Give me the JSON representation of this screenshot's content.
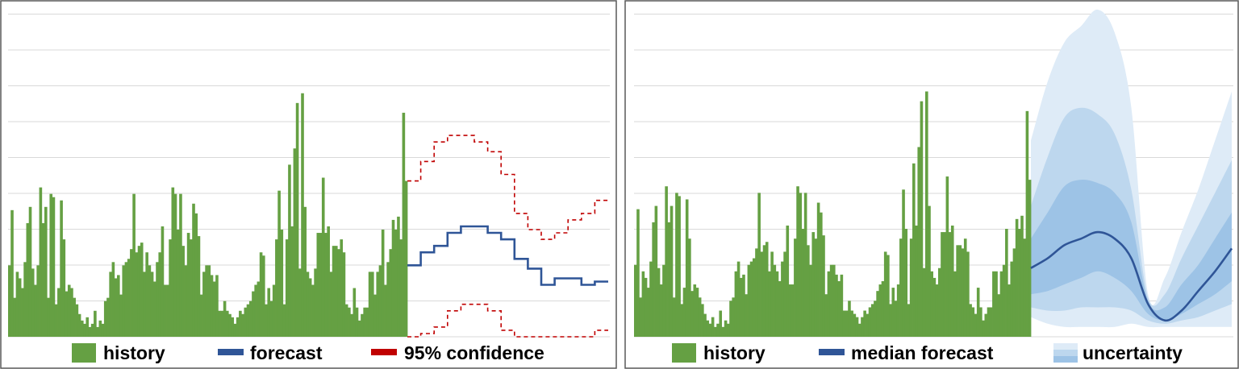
{
  "colors": {
    "history": "#65a043",
    "forecast": "#2f5597",
    "confidence": "#c00000",
    "band_outer": "#deebf7",
    "band_mid": "#bdd7ee",
    "band_inner": "#9dc3e6",
    "grid": "#d9d9d9",
    "frame": "#595959"
  },
  "chart_data": [
    {
      "type": "bar",
      "panel": "left",
      "grid": true,
      "ylim": [
        0,
        100
      ],
      "history": [
        22,
        39,
        12,
        20,
        18,
        15,
        23,
        35,
        40,
        21,
        16,
        22,
        46,
        35,
        40,
        12,
        44,
        43,
        10,
        15,
        42,
        30,
        14,
        16,
        15,
        12,
        10,
        7,
        5,
        4,
        6,
        3,
        4,
        8,
        3,
        5,
        4,
        11,
        12,
        20,
        23,
        18,
        19,
        13,
        22,
        23,
        24,
        27,
        44,
        26,
        28,
        29,
        20,
        26,
        22,
        20,
        17,
        23,
        26,
        34,
        16,
        16,
        30,
        46,
        44,
        33,
        44,
        28,
        22,
        32,
        30,
        41,
        38,
        31,
        13,
        20,
        22,
        22,
        19,
        17,
        19,
        8,
        8,
        11,
        8,
        7,
        6,
        4,
        6,
        8,
        7,
        9,
        10,
        11,
        14,
        16,
        17,
        26,
        25,
        10,
        15,
        11,
        16,
        30,
        45,
        33,
        10,
        30,
        53,
        34,
        58,
        72,
        21,
        75,
        40,
        20,
        18,
        16,
        21,
        32,
        32,
        49,
        32,
        34,
        20,
        28,
        28,
        27,
        30,
        26,
        10,
        9,
        7,
        15,
        9,
        5,
        7,
        9,
        9,
        20,
        20,
        13,
        20,
        22,
        33,
        16,
        23,
        27,
        36,
        33,
        37,
        30,
        69,
        48
      ],
      "forecast_steps": [
        22,
        26,
        28,
        32,
        34,
        34,
        32,
        30,
        24,
        21,
        16,
        18,
        18,
        16,
        17
      ],
      "upper_steps": [
        48,
        54,
        60,
        62,
        62,
        60,
        57,
        50,
        38,
        33,
        30,
        32,
        36,
        38,
        42
      ],
      "lower_steps": [
        0,
        1,
        3,
        8,
        10,
        10,
        8,
        2,
        0,
        0,
        0,
        0,
        0,
        0,
        2
      ],
      "legend": [
        {
          "key": "history",
          "label": "history"
        },
        {
          "key": "forecast",
          "label": "forecast"
        },
        {
          "key": "confidence",
          "label": "95% confidence"
        }
      ]
    },
    {
      "type": "area",
      "panel": "right",
      "grid": true,
      "ylim": [
        0,
        100
      ],
      "history": [
        22,
        39,
        12,
        20,
        18,
        15,
        23,
        35,
        40,
        21,
        16,
        22,
        46,
        35,
        40,
        12,
        44,
        43,
        10,
        15,
        42,
        30,
        14,
        16,
        15,
        12,
        10,
        7,
        5,
        4,
        6,
        3,
        4,
        8,
        3,
        5,
        4,
        11,
        12,
        20,
        23,
        18,
        19,
        13,
        22,
        23,
        24,
        27,
        44,
        26,
        28,
        29,
        20,
        26,
        22,
        20,
        17,
        23,
        26,
        34,
        16,
        16,
        30,
        46,
        44,
        33,
        44,
        28,
        22,
        32,
        30,
        41,
        38,
        31,
        13,
        20,
        22,
        22,
        19,
        17,
        19,
        8,
        8,
        11,
        8,
        7,
        6,
        4,
        6,
        8,
        7,
        9,
        10,
        11,
        14,
        16,
        17,
        26,
        25,
        10,
        15,
        11,
        16,
        30,
        45,
        33,
        10,
        30,
        53,
        34,
        58,
        72,
        21,
        75,
        40,
        20,
        18,
        16,
        21,
        32,
        32,
        49,
        32,
        34,
        20,
        28,
        28,
        27,
        30,
        26,
        10,
        9,
        7,
        15,
        9,
        5,
        7,
        9,
        9,
        20,
        20,
        13,
        20,
        22,
        33,
        16,
        23,
        27,
        36,
        33,
        37,
        30,
        69,
        48
      ],
      "forecast_median": [
        21,
        24,
        28,
        30,
        32,
        30,
        24,
        10,
        5,
        8,
        14,
        20,
        27
      ],
      "bands": [
        {
          "upper": [
            60,
            78,
            90,
            95,
            100,
            93,
            70,
            13,
            18,
            32,
            45,
            60,
            75
          ],
          "lower": [
            6,
            4,
            3,
            3,
            3,
            3,
            4,
            3,
            3,
            3,
            3,
            3,
            3
          ]
        },
        {
          "upper": [
            40,
            55,
            67,
            70,
            68,
            62,
            45,
            12,
            13,
            24,
            34,
            44,
            54
          ],
          "lower": [
            9,
            8,
            8,
            9,
            9,
            9,
            8,
            5,
            4,
            5,
            6,
            8,
            10
          ]
        },
        {
          "upper": [
            30,
            38,
            46,
            48,
            47,
            44,
            35,
            11,
            9,
            16,
            22,
            30,
            38
          ],
          "lower": [
            13,
            14,
            16,
            18,
            20,
            18,
            14,
            7,
            5,
            7,
            10,
            13,
            17
          ]
        }
      ],
      "legend": [
        {
          "key": "history",
          "label": "history"
        },
        {
          "key": "median",
          "label": "median forecast"
        },
        {
          "key": "uncertainty",
          "label": "uncertainty"
        }
      ]
    }
  ]
}
